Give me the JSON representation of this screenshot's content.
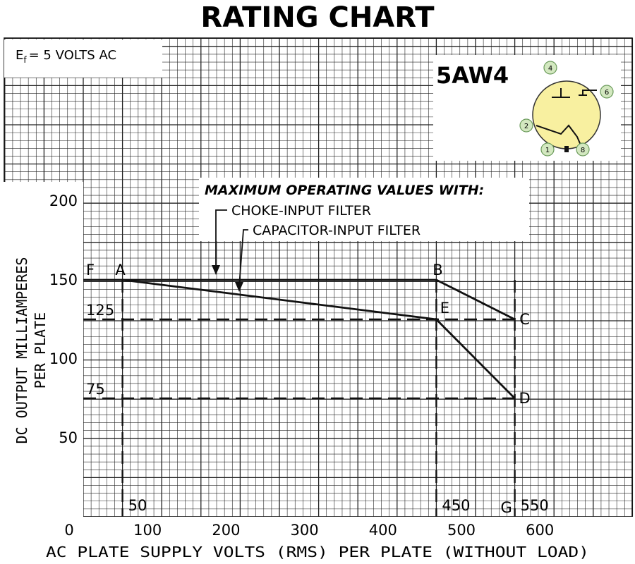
{
  "title": "RATING CHART",
  "ef_note": {
    "prefix": "E",
    "sub": "f",
    "rest": "= 5 VOLTS AC"
  },
  "tube": {
    "name": "5AW4",
    "pins": [
      "4",
      "6",
      "2",
      "1",
      "8"
    ],
    "fill_color": "#f8f0a0",
    "pin_fill_color": "#d3e8c0"
  },
  "chart_data": {
    "type": "line",
    "title": "RATING CHART",
    "xlabel": "AC PLATE SUPPLY VOLTS (RMS) PER PLATE (WITHOUT LOAD)",
    "ylabel_lines": [
      "DC OUTPUT MILLIAMPERES",
      "PER PLATE"
    ],
    "xlim": [
      0,
      700
    ],
    "ylim": [
      0,
      225
    ],
    "xticks": [
      "0",
      "100",
      "200",
      "300",
      "400",
      "500",
      "600"
    ],
    "yticks": [
      "200",
      "150",
      "100",
      "50"
    ],
    "grid": true,
    "annotation_heading": "MAXIMUM OPERATING VALUES WITH:",
    "series": [
      {
        "name": "CHOKE-INPUT FILTER",
        "x": [
          0,
          50,
          450,
          550
        ],
        "y": [
          150,
          150,
          150,
          125
        ]
      },
      {
        "name": "CAPACITOR-INPUT FILTER",
        "x": [
          50,
          450,
          550
        ],
        "y": [
          150,
          125,
          75
        ]
      }
    ],
    "points": [
      {
        "label": "F",
        "x": 0,
        "y": 150
      },
      {
        "label": "A",
        "x": 50,
        "y": 150
      },
      {
        "label": "B",
        "x": 450,
        "y": 150
      },
      {
        "label": "C",
        "x": 550,
        "y": 125
      },
      {
        "label": "E",
        "x": 450,
        "y": 125
      },
      {
        "label": "D",
        "x": 550,
        "y": 75
      },
      {
        "label": "G",
        "x": 550,
        "y": 0
      }
    ],
    "reference_lines": {
      "horizontal": [
        {
          "label": "125",
          "y": 125
        },
        {
          "label": "75",
          "y": 75
        }
      ],
      "vertical": [
        {
          "label": "50",
          "x": 50
        },
        {
          "label": "450",
          "x": 450
        },
        {
          "label": "550",
          "x": 550
        }
      ]
    }
  }
}
